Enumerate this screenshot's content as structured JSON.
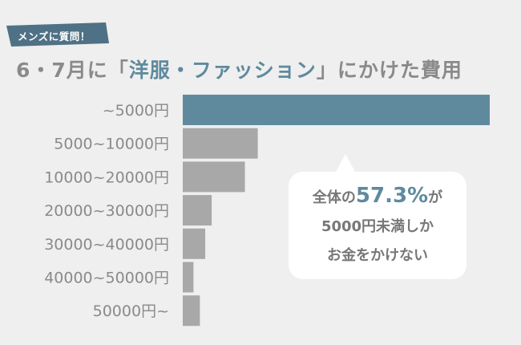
{
  "tag": {
    "text": "メンズに質問！"
  },
  "title": {
    "before": "6・7月に「",
    "accent": "洋服・ファッション",
    "after": "」にかけた費用"
  },
  "callout": {
    "pre": "全体の",
    "percent": "57.3%",
    "post": "が",
    "line2": "5000円未満しか",
    "line3": "お金をかけない"
  },
  "colors": {
    "highlight": "#5f8a9e",
    "bar": "#a8a8a8",
    "label": "#8a8a8a",
    "background": "#efefef"
  },
  "chart_data": {
    "type": "bar",
    "orientation": "horizontal",
    "categories": [
      "~5000円",
      "5000~10000円",
      "10000~20000円",
      "20000~30000円",
      "30000~40000円",
      "40000~50000円",
      "50000円~"
    ],
    "values": [
      57.3,
      14.0,
      11.6,
      5.4,
      4.2,
      2.0,
      3.2
    ],
    "unit": "%",
    "highlight_index": 0,
    "xlim": [
      0,
      57.3
    ]
  }
}
